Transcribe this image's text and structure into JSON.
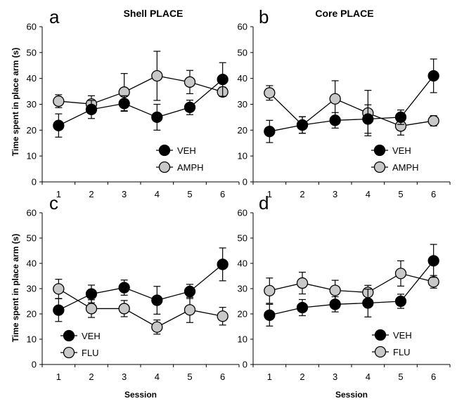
{
  "figure": {
    "ylabel": "Time spent in place arm (s)",
    "xlabel": "Session"
  },
  "chart_data": [
    {
      "type": "line",
      "panel_letter": "a",
      "title": "Shell  PLACE",
      "xlabel": "",
      "ylabel": "Time spent in place arm (s)",
      "x": [
        1,
        2,
        3,
        4,
        5,
        6
      ],
      "ylim": [
        0,
        60
      ],
      "yticks": [
        0,
        10,
        20,
        30,
        40,
        50,
        60
      ],
      "legend": "bottom-right",
      "series": [
        {
          "name": "VEH",
          "color": "#000000",
          "values": [
            21.8,
            28.0,
            30.3,
            25.0,
            28.8,
            39.6
          ],
          "errors": [
            4.5,
            3.5,
            3.0,
            5.0,
            2.8,
            6.5
          ]
        },
        {
          "name": "AMPH",
          "color": "#c8c8c8",
          "values": [
            31.2,
            30.1,
            34.7,
            41.0,
            38.6,
            34.8
          ],
          "errors": [
            2.5,
            3.2,
            7.2,
            9.5,
            4.5,
            1.8
          ]
        }
      ]
    },
    {
      "type": "line",
      "panel_letter": "b",
      "title": "Core  PLACE",
      "xlabel": "",
      "ylabel": "",
      "x": [
        1,
        2,
        3,
        4,
        5,
        6
      ],
      "ylim": [
        0,
        60
      ],
      "yticks": [
        0,
        10,
        20,
        30,
        40,
        50,
        60
      ],
      "legend": "bottom-right",
      "series": [
        {
          "name": "VEH",
          "color": "#000000",
          "values": [
            19.5,
            22.0,
            23.8,
            24.3,
            25.0,
            41.0
          ],
          "errors": [
            4.3,
            3.2,
            3.0,
            5.5,
            2.8,
            6.5
          ]
        },
        {
          "name": "AMPH",
          "color": "#c8c8c8",
          "values": [
            34.4,
            22.0,
            32.1,
            26.6,
            21.6,
            23.6
          ],
          "errors": [
            2.8,
            3.2,
            7.0,
            8.8,
            3.5,
            2.0
          ]
        }
      ]
    },
    {
      "type": "line",
      "panel_letter": "c",
      "title": "",
      "xlabel": "Session",
      "ylabel": "Time spent in place arm (s)",
      "x": [
        1,
        2,
        3,
        4,
        5,
        6
      ],
      "ylim": [
        0,
        60
      ],
      "yticks": [
        0,
        10,
        20,
        30,
        40,
        50,
        60
      ],
      "legend": "bottom-left",
      "series": [
        {
          "name": "VEH",
          "color": "#000000",
          "values": [
            21.5,
            27.9,
            30.4,
            25.4,
            28.9,
            39.6
          ],
          "errors": [
            4.5,
            3.5,
            3.0,
            5.5,
            2.8,
            6.5
          ]
        },
        {
          "name": "FLU",
          "color": "#c8c8c8",
          "values": [
            29.9,
            22.1,
            22.1,
            14.8,
            21.6,
            19.1
          ],
          "errors": [
            3.8,
            3.5,
            3.2,
            2.8,
            5.0,
            3.5
          ]
        }
      ]
    },
    {
      "type": "line",
      "panel_letter": "d",
      "title": "",
      "xlabel": "Session",
      "ylabel": "",
      "x": [
        1,
        2,
        3,
        4,
        5,
        6
      ],
      "ylim": [
        0,
        60
      ],
      "yticks": [
        0,
        10,
        20,
        30,
        40,
        50,
        60
      ],
      "legend": "bottom-right",
      "series": [
        {
          "name": "VEH",
          "color": "#000000",
          "values": [
            19.5,
            22.5,
            23.8,
            24.3,
            25.0,
            41.0
          ],
          "errors": [
            4.3,
            3.2,
            3.0,
            5.5,
            2.8,
            6.5
          ]
        },
        {
          "name": "FLU",
          "color": "#c8c8c8",
          "values": [
            29.2,
            32.2,
            29.3,
            28.5,
            36.0,
            32.7
          ],
          "errors": [
            5.0,
            4.3,
            4.0,
            2.8,
            5.0,
            2.5
          ]
        }
      ]
    }
  ]
}
